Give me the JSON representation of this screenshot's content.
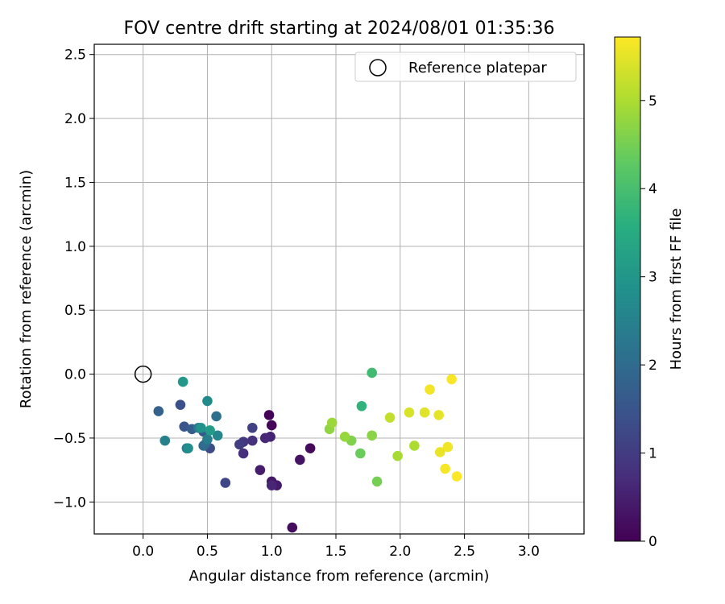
{
  "chart_data": {
    "type": "scatter",
    "title": "FOV centre drift starting at 2024/08/01 01:35:36",
    "xlabel": "Angular distance from reference (arcmin)",
    "ylabel": "Rotation from reference (arcmin)",
    "xlim": [
      -0.38,
      3.43
    ],
    "ylim": [
      -1.25,
      2.58
    ],
    "xticks": [
      0.0,
      0.5,
      1.0,
      1.5,
      2.0,
      2.5,
      3.0
    ],
    "xtick_labels": [
      "0.0",
      "0.5",
      "1.0",
      "1.5",
      "2.0",
      "2.5",
      "3.0"
    ],
    "yticks": [
      -1.0,
      -0.5,
      0.0,
      0.5,
      1.0,
      1.5,
      2.0,
      2.5
    ],
    "ytick_labels": [
      "−1.0",
      "−0.5",
      "0.0",
      "0.5",
      "1.0",
      "1.5",
      "2.0",
      "2.5"
    ],
    "grid": true,
    "legend": {
      "placement": "top-right",
      "entries": [
        "Reference platepar"
      ]
    },
    "reference_point": {
      "x": 0.0,
      "y": 0.0
    },
    "colorbar": {
      "label": "Hours from first FF file",
      "colormap": "viridis",
      "range": [
        0,
        5.72
      ],
      "ticks": [
        0,
        1,
        2,
        3,
        4,
        5
      ],
      "tick_labels": [
        "0",
        "1",
        "2",
        "3",
        "4",
        "5"
      ]
    },
    "points": [
      {
        "x": 0.98,
        "y": -0.32,
        "h": 0.05
      },
      {
        "x": 1.0,
        "y": -0.4,
        "h": 0.1
      },
      {
        "x": 1.3,
        "y": -0.58,
        "h": 0.15
      },
      {
        "x": 1.16,
        "y": -1.2,
        "h": 0.2
      },
      {
        "x": 1.22,
        "y": -0.67,
        "h": 0.3
      },
      {
        "x": 1.0,
        "y": -0.84,
        "h": 0.35
      },
      {
        "x": 1.04,
        "y": -0.87,
        "h": 0.4
      },
      {
        "x": 0.91,
        "y": -0.75,
        "h": 0.45
      },
      {
        "x": 0.99,
        "y": -0.49,
        "h": 0.55
      },
      {
        "x": 1.0,
        "y": -0.87,
        "h": 0.6
      },
      {
        "x": 0.95,
        "y": -0.5,
        "h": 0.65
      },
      {
        "x": 0.78,
        "y": -0.62,
        "h": 0.75
      },
      {
        "x": 0.85,
        "y": -0.52,
        "h": 0.8
      },
      {
        "x": 0.78,
        "y": -0.53,
        "h": 0.9
      },
      {
        "x": 0.75,
        "y": -0.55,
        "h": 1.0
      },
      {
        "x": 0.85,
        "y": -0.42,
        "h": 1.1
      },
      {
        "x": 0.64,
        "y": -0.85,
        "h": 1.2
      },
      {
        "x": 0.52,
        "y": -0.58,
        "h": 1.3
      },
      {
        "x": 0.29,
        "y": -0.24,
        "h": 1.4
      },
      {
        "x": 0.32,
        "y": -0.41,
        "h": 1.5
      },
      {
        "x": 0.47,
        "y": -0.45,
        "h": 1.6
      },
      {
        "x": 0.38,
        "y": -0.43,
        "h": 1.7
      },
      {
        "x": 0.12,
        "y": -0.29,
        "h": 1.8
      },
      {
        "x": 0.49,
        "y": -0.54,
        "h": 1.9
      },
      {
        "x": 0.47,
        "y": -0.56,
        "h": 2.0
      },
      {
        "x": 0.57,
        "y": -0.33,
        "h": 2.1
      },
      {
        "x": 0.34,
        "y": -0.58,
        "h": 2.2
      },
      {
        "x": 0.43,
        "y": -0.42,
        "h": 2.3
      },
      {
        "x": 0.5,
        "y": -0.51,
        "h": 2.4
      },
      {
        "x": 0.17,
        "y": -0.52,
        "h": 2.5
      },
      {
        "x": 0.58,
        "y": -0.48,
        "h": 2.6
      },
      {
        "x": 0.5,
        "y": -0.21,
        "h": 2.7
      },
      {
        "x": 0.35,
        "y": -0.58,
        "h": 2.8
      },
      {
        "x": 0.45,
        "y": -0.42,
        "h": 2.9
      },
      {
        "x": 0.31,
        "y": -0.06,
        "h": 3.0
      },
      {
        "x": 0.52,
        "y": -0.44,
        "h": 3.1
      },
      {
        "x": 1.7,
        "y": -0.25,
        "h": 3.7
      },
      {
        "x": 1.78,
        "y": 0.01,
        "h": 3.9
      },
      {
        "x": 1.69,
        "y": -0.62,
        "h": 4.4
      },
      {
        "x": 1.82,
        "y": -0.84,
        "h": 4.5
      },
      {
        "x": 1.62,
        "y": -0.52,
        "h": 4.6
      },
      {
        "x": 1.78,
        "y": -0.48,
        "h": 4.7
      },
      {
        "x": 1.45,
        "y": -0.43,
        "h": 4.75
      },
      {
        "x": 1.57,
        "y": -0.49,
        "h": 4.8
      },
      {
        "x": 1.47,
        "y": -0.38,
        "h": 4.85
      },
      {
        "x": 1.98,
        "y": -0.64,
        "h": 4.95
      },
      {
        "x": 2.11,
        "y": -0.56,
        "h": 5.0
      },
      {
        "x": 1.92,
        "y": -0.34,
        "h": 5.2
      },
      {
        "x": 2.07,
        "y": -0.3,
        "h": 5.4
      },
      {
        "x": 2.19,
        "y": -0.3,
        "h": 5.45
      },
      {
        "x": 2.3,
        "y": -0.32,
        "h": 5.5
      },
      {
        "x": 2.31,
        "y": -0.61,
        "h": 5.55
      },
      {
        "x": 2.37,
        "y": -0.57,
        "h": 5.6
      },
      {
        "x": 2.23,
        "y": -0.12,
        "h": 5.62
      },
      {
        "x": 2.35,
        "y": -0.74,
        "h": 5.65
      },
      {
        "x": 2.4,
        "y": -0.04,
        "h": 5.68
      },
      {
        "x": 2.44,
        "y": -0.8,
        "h": 5.7
      }
    ]
  }
}
